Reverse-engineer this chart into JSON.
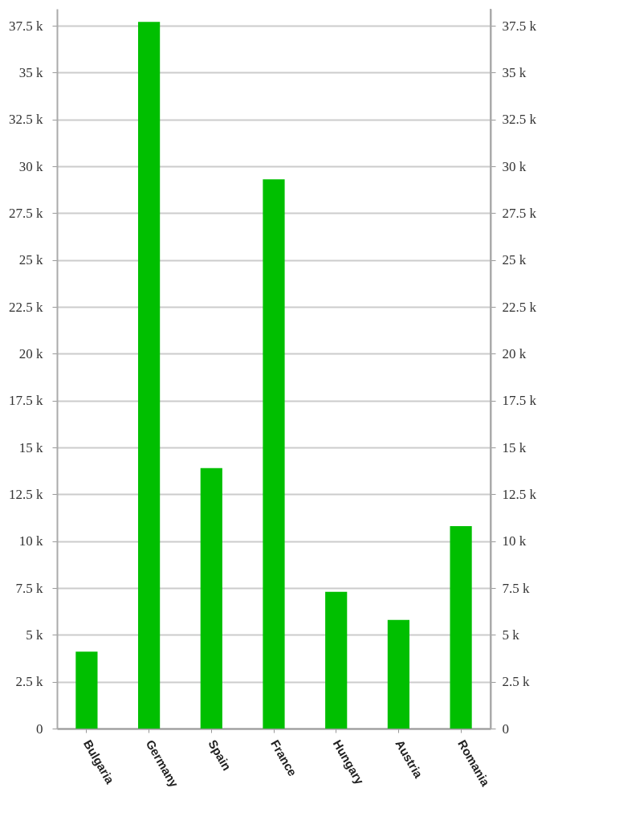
{
  "chart_data": {
    "type": "bar",
    "categories": [
      "Bulgaria",
      "Germany",
      "Spain",
      "France",
      "Hungary",
      "Austria",
      "Romania"
    ],
    "values": [
      4100,
      37700,
      13900,
      29300,
      7300,
      5800,
      10800
    ],
    "color": "#00bf00",
    "ylim": [
      0,
      38400
    ],
    "yticks": [
      0,
      {
        "value": 2500,
        "label": "2.5 k"
      },
      {
        "value": 5000,
        "label": "5 k"
      },
      {
        "value": 7500,
        "label": "7.5 k"
      },
      {
        "value": 10000,
        "label": "10 k"
      },
      {
        "value": 12500,
        "label": "12.5 k"
      },
      {
        "value": 15000,
        "label": "15 k"
      },
      {
        "value": 17500,
        "label": "17.5 k"
      },
      {
        "value": 20000,
        "label": "20 k"
      },
      {
        "value": 22500,
        "label": "22.5 k"
      },
      {
        "value": 25000,
        "label": "25 k"
      },
      {
        "value": 27500,
        "label": "27.5 k"
      },
      {
        "value": 30000,
        "label": "30 k"
      },
      {
        "value": 32500,
        "label": "32.5 k"
      },
      {
        "value": 35000,
        "label": "35 k"
      },
      {
        "value": 37500,
        "label": "37.5 k"
      }
    ],
    "y2lim": [
      0,
      38400
    ],
    "y2ticks": [
      0,
      {
        "value": 2500,
        "label": "2.5 k"
      },
      {
        "value": 5000,
        "label": "5 k"
      },
      {
        "value": 7500,
        "label": "7.5 k"
      },
      {
        "value": 10000,
        "label": "10 k"
      },
      {
        "value": 12500,
        "label": "12.5 k"
      },
      {
        "value": 15000,
        "label": "15 k"
      },
      {
        "value": 17500,
        "label": "17.5 k"
      },
      {
        "value": 20000,
        "label": "20 k"
      },
      {
        "value": 22500,
        "label": "22.5 k"
      },
      {
        "value": 25000,
        "label": "25 k"
      },
      {
        "value": 27500,
        "label": "27.5 k"
      },
      {
        "value": 30000,
        "label": "30 k"
      },
      {
        "value": 32500,
        "label": "32.5 k"
      },
      {
        "value": 35000,
        "label": "35 k"
      },
      {
        "value": 37500,
        "label": "37.5 k"
      }
    ],
    "grid": "y"
  }
}
